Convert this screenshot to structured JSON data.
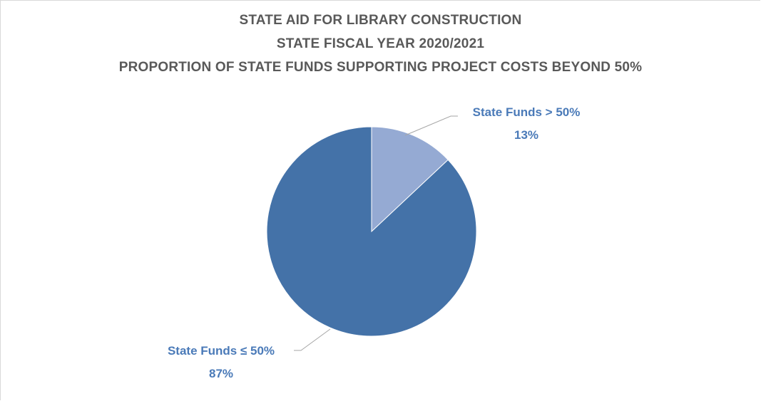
{
  "chart_data": {
    "type": "pie",
    "title": "STATE AID FOR LIBRARY CONSTRUCTION",
    "subtitle": "STATE FISCAL YEAR 2020/2021",
    "subtitle2": "PROPORTION OF STATE FUNDS SUPPORTING PROJECT COSTS BEYOND 50%",
    "slices": [
      {
        "label": "State Funds > 50%",
        "value": 13,
        "value_label": "13%",
        "color": "#95aad3"
      },
      {
        "label": "State Funds ≤ 50%",
        "value": 87,
        "value_label": "87%",
        "color": "#4472a8"
      }
    ],
    "label_color": "#4a7ab8"
  }
}
